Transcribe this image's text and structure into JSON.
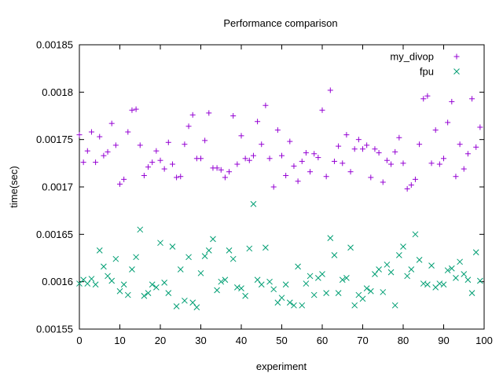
{
  "chart_data": {
    "type": "scatter",
    "title": "Performance comparison",
    "xlabel": "experiment",
    "ylabel": "time(sec)",
    "xlim": [
      0,
      100
    ],
    "ylim": [
      0.00155,
      0.00185
    ],
    "grid": false,
    "legend_position": "top-right",
    "x_ticks": [
      "0",
      "10",
      "20",
      "30",
      "40",
      "50",
      "60",
      "70",
      "80",
      "90",
      "100"
    ],
    "y_ticks": [
      "0.00155",
      "0.0016",
      "0.00165",
      "0.0017",
      "0.00175",
      "0.0018",
      "0.00185"
    ],
    "series": [
      {
        "name": "my_divop",
        "marker": "plus",
        "color": "#9400d3",
        "x": [
          0,
          1,
          2,
          3,
          4,
          5,
          6,
          7,
          8,
          9,
          10,
          11,
          12,
          13,
          14,
          15,
          16,
          17,
          18,
          19,
          20,
          21,
          22,
          23,
          24,
          25,
          26,
          27,
          28,
          29,
          30,
          31,
          32,
          33,
          34,
          35,
          36,
          37,
          38,
          39,
          40,
          41,
          42,
          43,
          44,
          45,
          46,
          47,
          48,
          49,
          50,
          51,
          52,
          53,
          54,
          55,
          56,
          57,
          58,
          59,
          60,
          61,
          62,
          63,
          64,
          65,
          66,
          67,
          68,
          69,
          70,
          71,
          72,
          73,
          74,
          75,
          76,
          77,
          78,
          79,
          80,
          81,
          82,
          83,
          84,
          85,
          86,
          87,
          88,
          89,
          90,
          91,
          92,
          93,
          94,
          95,
          96,
          97,
          98,
          99
        ],
        "y": [
          0.001755,
          0.001726,
          0.001738,
          0.001758,
          0.001726,
          0.001753,
          0.001733,
          0.001737,
          0.001767,
          0.001744,
          0.001703,
          0.001708,
          0.001758,
          0.001781,
          0.001782,
          0.001744,
          0.001712,
          0.001721,
          0.001726,
          0.001738,
          0.001728,
          0.001719,
          0.001747,
          0.001724,
          0.00171,
          0.001711,
          0.001745,
          0.001764,
          0.001776,
          0.00173,
          0.00173,
          0.001749,
          0.001778,
          0.00172,
          0.00172,
          0.001718,
          0.00171,
          0.001716,
          0.001775,
          0.001724,
          0.001754,
          0.00173,
          0.001728,
          0.001733,
          0.001769,
          0.001745,
          0.001786,
          0.00173,
          0.0017,
          0.00176,
          0.001733,
          0.001712,
          0.001748,
          0.001722,
          0.001706,
          0.001727,
          0.001736,
          0.001716,
          0.001735,
          0.001731,
          0.001781,
          0.001711,
          0.001802,
          0.001727,
          0.001743,
          0.001725,
          0.001755,
          0.001716,
          0.00174,
          0.00175,
          0.00174,
          0.001744,
          0.00171,
          0.00174,
          0.001736,
          0.001705,
          0.001728,
          0.001724,
          0.001737,
          0.001752,
          0.001725,
          0.001698,
          0.001702,
          0.001708,
          0.001745,
          0.001793,
          0.001796,
          0.001725,
          0.00176,
          0.001724,
          0.00173,
          0.001768,
          0.00179,
          0.001711,
          0.001745,
          0.001719,
          0.001735,
          0.001793,
          0.001742,
          0.001763
        ]
      },
      {
        "name": "fpu",
        "marker": "cross",
        "color": "#009e73",
        "x": [
          0,
          1,
          2,
          3,
          4,
          5,
          6,
          7,
          8,
          9,
          10,
          11,
          12,
          13,
          14,
          15,
          16,
          17,
          18,
          19,
          20,
          21,
          22,
          23,
          24,
          25,
          26,
          27,
          28,
          29,
          30,
          31,
          32,
          33,
          34,
          35,
          36,
          37,
          38,
          39,
          40,
          41,
          42,
          43,
          44,
          45,
          46,
          47,
          48,
          49,
          50,
          51,
          52,
          53,
          54,
          55,
          56,
          57,
          58,
          59,
          60,
          61,
          62,
          63,
          64,
          65,
          66,
          67,
          68,
          69,
          70,
          71,
          72,
          73,
          74,
          75,
          76,
          77,
          78,
          79,
          80,
          81,
          82,
          83,
          84,
          85,
          86,
          87,
          88,
          89,
          90,
          91,
          92,
          93,
          94,
          95,
          96,
          97,
          98,
          99
        ],
        "y": [
          0.001598,
          0.001602,
          0.001598,
          0.001603,
          0.001597,
          0.001633,
          0.001616,
          0.001606,
          0.001601,
          0.001624,
          0.00159,
          0.001597,
          0.001586,
          0.001613,
          0.001626,
          0.001655,
          0.001585,
          0.001588,
          0.001597,
          0.001594,
          0.001641,
          0.001599,
          0.001588,
          0.001637,
          0.001574,
          0.001613,
          0.00158,
          0.001626,
          0.001578,
          0.001573,
          0.001609,
          0.001627,
          0.001633,
          0.001645,
          0.001591,
          0.0016,
          0.001602,
          0.001633,
          0.001624,
          0.001594,
          0.001593,
          0.001585,
          0.001635,
          0.001682,
          0.001602,
          0.001597,
          0.001636,
          0.0016,
          0.001592,
          0.001578,
          0.001583,
          0.001597,
          0.001578,
          0.001575,
          0.001616,
          0.001575,
          0.001598,
          0.001606,
          0.001586,
          0.001604,
          0.001608,
          0.001588,
          0.001646,
          0.001628,
          0.001588,
          0.001602,
          0.001604,
          0.001636,
          0.001575,
          0.001586,
          0.001582,
          0.001593,
          0.00159,
          0.001608,
          0.001613,
          0.001589,
          0.001618,
          0.00161,
          0.001575,
          0.001628,
          0.001637,
          0.001606,
          0.001613,
          0.00165,
          0.001623,
          0.001598,
          0.001597,
          0.001617,
          0.001594,
          0.001598,
          0.001597,
          0.001612,
          0.001614,
          0.001604,
          0.001621,
          0.001608,
          0.001602,
          0.001588,
          0.001631,
          0.001601
        ]
      }
    ]
  }
}
